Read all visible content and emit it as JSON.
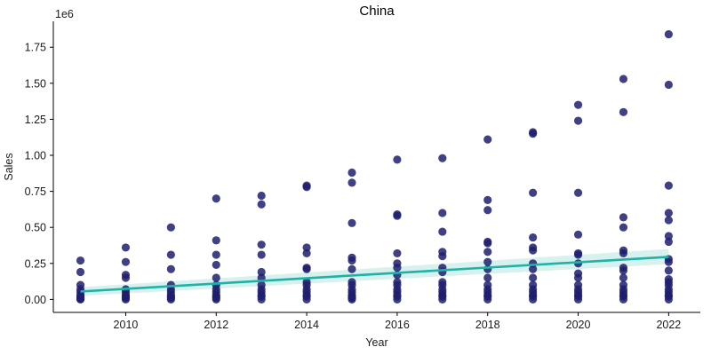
{
  "chart_data": {
    "type": "scatter",
    "title": "China",
    "xlabel": "Year",
    "ylabel": "Sales",
    "y_offset_label": "1e6",
    "xlim": [
      2008.4,
      2022.7
    ],
    "ylim": [
      -0.09,
      1.93
    ],
    "x_ticks": [
      2010,
      2012,
      2014,
      2016,
      2018,
      2020,
      2022
    ],
    "x_tick_labels": [
      "2010",
      "2012",
      "2014",
      "2016",
      "2018",
      "2020",
      "2022"
    ],
    "y_ticks": [
      0,
      0.25,
      0.5,
      0.75,
      1.0,
      1.25,
      1.5,
      1.75
    ],
    "y_tick_labels": [
      "0.00",
      "0.25",
      "0.50",
      "0.75",
      "1.00",
      "1.25",
      "1.50",
      "1.75"
    ],
    "grid": false,
    "colors": {
      "points": "#1f1f6e",
      "trend": "#20b2a6",
      "ci_band": "#20b2a6"
    },
    "points": [
      {
        "x": 2009,
        "y": [
          0.27,
          0.19,
          0.1,
          0.07,
          0.05,
          0.03,
          0.02,
          0.01,
          0.005,
          0.0
        ]
      },
      {
        "x": 2010,
        "y": [
          0.36,
          0.26,
          0.17,
          0.15,
          0.07,
          0.05,
          0.03,
          0.02,
          0.01,
          0.0
        ]
      },
      {
        "x": 2011,
        "y": [
          0.5,
          0.31,
          0.21,
          0.1,
          0.07,
          0.05,
          0.03,
          0.02,
          0.01,
          0.0
        ]
      },
      {
        "x": 2012,
        "y": [
          0.7,
          0.41,
          0.31,
          0.24,
          0.15,
          0.1,
          0.07,
          0.05,
          0.03,
          0.02,
          0.01,
          0.0
        ]
      },
      {
        "x": 2013,
        "y": [
          0.72,
          0.66,
          0.38,
          0.31,
          0.19,
          0.15,
          0.1,
          0.07,
          0.05,
          0.03,
          0.02,
          0.0
        ]
      },
      {
        "x": 2014,
        "y": [
          0.79,
          0.78,
          0.36,
          0.32,
          0.22,
          0.21,
          0.12,
          0.1,
          0.07,
          0.05,
          0.03,
          0.02,
          0.0
        ]
      },
      {
        "x": 2015,
        "y": [
          0.88,
          0.81,
          0.53,
          0.29,
          0.27,
          0.21,
          0.12,
          0.1,
          0.07,
          0.05,
          0.03,
          0.02,
          0.01,
          0.0
        ]
      },
      {
        "x": 2016,
        "y": [
          0.97,
          0.59,
          0.58,
          0.32,
          0.25,
          0.22,
          0.17,
          0.12,
          0.1,
          0.07,
          0.05,
          0.03,
          0.02,
          0.0
        ]
      },
      {
        "x": 2017,
        "y": [
          0.98,
          0.6,
          0.47,
          0.33,
          0.3,
          0.22,
          0.19,
          0.12,
          0.1,
          0.07,
          0.05,
          0.03,
          0.02,
          0.0
        ]
      },
      {
        "x": 2018,
        "y": [
          1.11,
          0.69,
          0.62,
          0.4,
          0.39,
          0.33,
          0.26,
          0.21,
          0.15,
          0.1,
          0.07,
          0.05,
          0.03,
          0.02,
          0.0
        ]
      },
      {
        "x": 2019,
        "y": [
          1.16,
          1.15,
          0.74,
          0.43,
          0.36,
          0.34,
          0.25,
          0.21,
          0.15,
          0.1,
          0.07,
          0.05,
          0.03,
          0.02,
          0.0
        ]
      },
      {
        "x": 2020,
        "y": [
          1.35,
          1.24,
          0.74,
          0.45,
          0.32,
          0.31,
          0.25,
          0.18,
          0.15,
          0.1,
          0.07,
          0.05,
          0.03,
          0.02,
          0.0
        ]
      },
      {
        "x": 2021,
        "y": [
          1.53,
          1.3,
          0.57,
          0.5,
          0.34,
          0.32,
          0.22,
          0.2,
          0.15,
          0.1,
          0.07,
          0.05,
          0.03,
          0.02,
          0.0
        ]
      },
      {
        "x": 2022,
        "y": [
          1.84,
          1.49,
          0.79,
          0.6,
          0.55,
          0.44,
          0.4,
          0.28,
          0.26,
          0.2,
          0.14,
          0.12,
          0.1,
          0.07,
          0.05,
          0.03,
          0.02,
          0.0
        ]
      }
    ],
    "trend": {
      "x": [
        2009,
        2022
      ],
      "y": [
        0.055,
        0.295
      ],
      "ci_lower": [
        0.025,
        0.245
      ],
      "ci_upper": [
        0.085,
        0.35
      ]
    }
  }
}
